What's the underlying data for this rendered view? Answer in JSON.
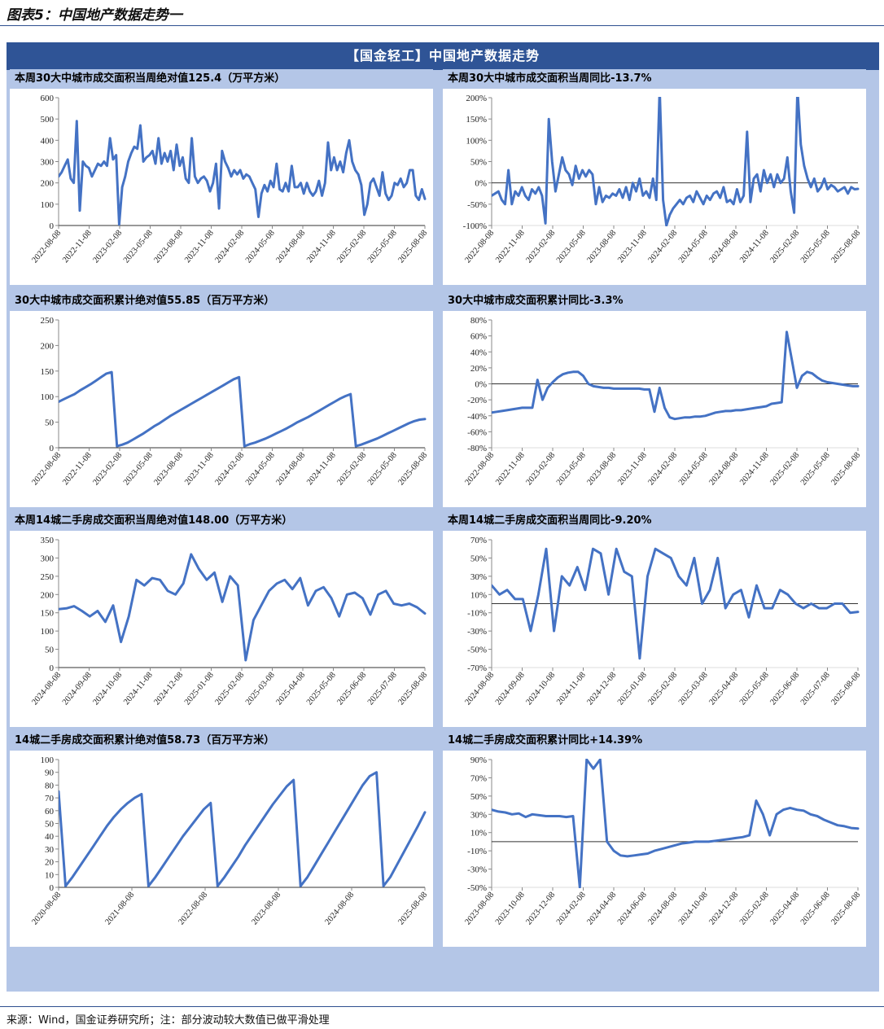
{
  "header": {
    "title": "图表5：中国地产数据走势一"
  },
  "banner": {
    "title": "【国金轻工】中国地产数据走势"
  },
  "footer": {
    "source": "来源：Wind，国金证券研究所；注：部分波动较大数值已做平滑处理"
  },
  "colors": {
    "line": "#4472c4",
    "banner": "#2f5496",
    "frame": "#b4c6e7"
  },
  "panels": [
    {
      "title": "本周30大中城市成交面积当周绝对值125.4（万平方米）",
      "chart_data": {
        "type": "line",
        "series_name": "30大中城市成交面积当周值",
        "ylim": [
          0,
          600
        ],
        "yticks": [
          0,
          100,
          200,
          300,
          400,
          500,
          600
        ],
        "percent": false,
        "zero_line": false,
        "xticks": [
          "2022-08-08",
          "2022-11-08",
          "2023-02-08",
          "2023-05-08",
          "2023-08-08",
          "2023-11-08",
          "2024-02-08",
          "2024-05-08",
          "2024-08-08",
          "2024-11-08",
          "2025-02-08",
          "2025-05-08",
          "2025-08-08"
        ],
        "values": [
          230,
          250,
          280,
          310,
          220,
          200,
          490,
          70,
          300,
          280,
          270,
          230,
          260,
          290,
          280,
          300,
          280,
          410,
          310,
          330,
          5,
          180,
          230,
          300,
          340,
          370,
          360,
          470,
          300,
          320,
          330,
          350,
          290,
          410,
          290,
          340,
          300,
          350,
          260,
          380,
          280,
          320,
          220,
          200,
          410,
          230,
          200,
          220,
          230,
          210,
          160,
          200,
          290,
          80,
          350,
          300,
          270,
          230,
          260,
          240,
          260,
          220,
          240,
          230,
          200,
          170,
          40,
          150,
          190,
          160,
          210,
          180,
          290,
          170,
          160,
          200,
          160,
          280,
          180,
          180,
          200,
          150,
          200,
          160,
          140,
          160,
          210,
          140,
          200,
          390,
          260,
          320,
          260,
          300,
          250,
          340,
          400,
          300,
          260,
          240,
          190,
          50,
          100,
          200,
          220,
          180,
          140,
          250,
          150,
          120,
          140,
          200,
          190,
          220,
          180,
          200,
          260,
          260,
          140,
          120,
          170,
          125
        ]
      }
    },
    {
      "title": "本周30大中城市成交面积当周同比-13.7%",
      "chart_data": {
        "type": "line",
        "series_name": "30大中城市成交面积当周同比",
        "ylim": [
          -100,
          200
        ],
        "yticks": [
          -100,
          -50,
          0,
          50,
          100,
          150,
          200
        ],
        "percent": true,
        "zero_line": true,
        "xticks": [
          "2022-08-08",
          "2022-11-08",
          "2023-02-08",
          "2023-05-08",
          "2023-08-08",
          "2023-11-08",
          "2024-02-08",
          "2024-05-08",
          "2024-08-08",
          "2024-11-08",
          "2025-02-08",
          "2025-05-08",
          "2025-08-08"
        ],
        "values": [
          -30,
          -25,
          -20,
          -40,
          -50,
          30,
          -50,
          -20,
          -30,
          -10,
          -30,
          -40,
          -15,
          -25,
          -10,
          -30,
          -95,
          150,
          50,
          -20,
          20,
          60,
          30,
          20,
          -5,
          40,
          10,
          30,
          15,
          30,
          20,
          -50,
          -10,
          -45,
          -30,
          -35,
          -25,
          -30,
          -15,
          -35,
          -10,
          -40,
          0,
          -20,
          10,
          -30,
          -20,
          -35,
          10,
          -40,
          220,
          -40,
          -100,
          -75,
          -60,
          -50,
          -40,
          -50,
          -35,
          -30,
          -45,
          -20,
          -35,
          -50,
          -30,
          -40,
          -25,
          -20,
          -35,
          -10,
          -45,
          -40,
          -50,
          -15,
          -45,
          -30,
          120,
          -45,
          10,
          20,
          -20,
          30,
          0,
          20,
          -10,
          20,
          0,
          10,
          60,
          -20,
          -70,
          220,
          90,
          40,
          10,
          -10,
          10,
          -20,
          -10,
          10,
          -15,
          -5,
          -10,
          -20,
          -15,
          -10,
          -25,
          -10,
          -15,
          -14
        ]
      }
    },
    {
      "title": "30大中城市成交面积累计绝对值55.85（百万平方米）",
      "chart_data": {
        "type": "line",
        "series_name": "30大中城市成交面积累计值",
        "ylim": [
          0,
          250
        ],
        "yticks": [
          0,
          50,
          100,
          150,
          200,
          250
        ],
        "percent": false,
        "zero_line": false,
        "xticks": [
          "2022-08-08",
          "2022-11-08",
          "2023-02-08",
          "2023-05-08",
          "2023-08-08",
          "2023-11-08",
          "2024-02-08",
          "2024-05-08",
          "2024-08-08",
          "2024-11-08",
          "2025-02-08",
          "2025-05-08",
          "2025-08-08"
        ],
        "values": [
          90,
          95,
          100,
          105,
          112,
          118,
          124,
          131,
          138,
          145,
          148,
          3,
          6,
          10,
          16,
          22,
          28,
          35,
          42,
          48,
          55,
          62,
          68,
          74,
          80,
          86,
          92,
          98,
          104,
          110,
          116,
          122,
          128,
          134,
          138,
          3,
          7,
          10,
          14,
          18,
          23,
          28,
          33,
          38,
          44,
          50,
          55,
          60,
          66,
          72,
          78,
          84,
          90,
          96,
          101,
          105,
          3,
          6,
          10,
          14,
          18,
          23,
          28,
          33,
          38,
          43,
          48,
          52,
          55,
          56
        ]
      }
    },
    {
      "title": "30大中城市成交面积累计同比-3.3%",
      "chart_data": {
        "type": "line",
        "series_name": "30大中城市成交面积累计同比",
        "ylim": [
          -80,
          80
        ],
        "yticks": [
          -80,
          -60,
          -40,
          -20,
          0,
          20,
          40,
          60,
          80
        ],
        "percent": true,
        "zero_line": true,
        "xticks": [
          "2022-08-08",
          "2022-11-08",
          "2023-02-08",
          "2023-05-08",
          "2023-08-08",
          "2023-11-08",
          "2024-02-08",
          "2024-05-08",
          "2024-08-08",
          "2024-11-08",
          "2025-02-08",
          "2025-05-08",
          "2025-08-08"
        ],
        "values": [
          -36,
          -35,
          -34,
          -33,
          -32,
          -31,
          -30,
          -30,
          -30,
          5,
          -20,
          -5,
          2,
          8,
          12,
          14,
          15,
          15,
          10,
          0,
          -3,
          -4,
          -5,
          -5,
          -6,
          -6,
          -6,
          -6,
          -6,
          -6,
          -7,
          -7,
          -35,
          -5,
          -30,
          -42,
          -44,
          -43,
          -42,
          -42,
          -41,
          -41,
          -40,
          -38,
          -36,
          -35,
          -34,
          -34,
          -33,
          -33,
          -32,
          -31,
          -30,
          -29,
          -28,
          -25,
          -24,
          -23,
          65,
          30,
          -5,
          10,
          15,
          13,
          8,
          4,
          2,
          1,
          0,
          -1,
          -2,
          -3,
          -3
        ]
      }
    },
    {
      "title": "本周14城二手房成交面积当周绝对值148.00（万平方米）",
      "chart_data": {
        "type": "line",
        "series_name": "14城二手房成交面积当周值",
        "ylim": [
          0,
          350
        ],
        "yticks": [
          0,
          50,
          100,
          150,
          200,
          250,
          300,
          350
        ],
        "percent": false,
        "zero_line": false,
        "xticks": [
          "2024-08-08",
          "2024-09-08",
          "2024-10-08",
          "2024-11-08",
          "2024-12-08",
          "2025-01-08",
          "2025-02-08",
          "2025-03-08",
          "2025-04-08",
          "2025-05-08",
          "2025-06-08",
          "2025-07-08",
          "2025-08-08"
        ],
        "values": [
          160,
          162,
          168,
          155,
          140,
          155,
          125,
          170,
          70,
          140,
          240,
          225,
          245,
          240,
          210,
          200,
          230,
          310,
          270,
          240,
          260,
          180,
          250,
          225,
          20,
          130,
          170,
          210,
          230,
          240,
          215,
          245,
          170,
          210,
          220,
          190,
          140,
          200,
          205,
          190,
          145,
          200,
          210,
          175,
          170,
          175,
          165,
          148
        ]
      }
    },
    {
      "title": "本周14城二手房成交面积当周同比-9.20%",
      "chart_data": {
        "type": "line",
        "series_name": "14城二手房成交面积当周同比",
        "ylim": [
          -70,
          70
        ],
        "yticks": [
          -70,
          -50,
          -30,
          -10,
          10,
          30,
          50,
          70
        ],
        "percent": true,
        "zero_line": true,
        "xticks": [
          "2024-08-08",
          "2024-09-08",
          "2024-10-08",
          "2024-11-08",
          "2024-12-08",
          "2025-01-08",
          "2025-02-08",
          "2025-03-08",
          "2025-04-08",
          "2025-05-08",
          "2025-06-08",
          "2025-07-08",
          "2025-08-08"
        ],
        "values": [
          20,
          10,
          15,
          5,
          5,
          -30,
          10,
          60,
          -30,
          30,
          20,
          40,
          15,
          60,
          55,
          10,
          60,
          35,
          30,
          -60,
          30,
          60,
          55,
          50,
          30,
          20,
          50,
          0,
          15,
          50,
          -5,
          10,
          15,
          -15,
          20,
          -5,
          -5,
          15,
          10,
          0,
          -5,
          0,
          -5,
          -5,
          0,
          0,
          -10,
          -9
        ]
      }
    },
    {
      "title": "14城二手房成交面积累计绝对值58.73（百万平方米）",
      "chart_data": {
        "type": "line",
        "series_name": "14城二手房成交面积累计值",
        "ylim": [
          0,
          100
        ],
        "yticks": [
          0,
          10,
          20,
          30,
          40,
          50,
          60,
          70,
          80,
          90,
          100
        ],
        "percent": false,
        "zero_line": false,
        "xticks": [
          "2020-08-08",
          "2021-08-08",
          "2022-08-08",
          "2023-08-08",
          "2024-08-08",
          "2025-08-08"
        ],
        "values": [
          75,
          1,
          8,
          16,
          24,
          32,
          40,
          48,
          55,
          61,
          66,
          70,
          73,
          1,
          8,
          16,
          24,
          32,
          40,
          47,
          54,
          61,
          66,
          1,
          8,
          16,
          24,
          33,
          41,
          49,
          57,
          65,
          72,
          79,
          84,
          1,
          8,
          17,
          26,
          35,
          44,
          53,
          62,
          71,
          80,
          87,
          90,
          1,
          8,
          18,
          28,
          38,
          48,
          58.73
        ]
      }
    },
    {
      "title": "14城二手房成交面积累计同比+14.39%",
      "chart_data": {
        "type": "line",
        "series_name": "14城二手房成交面积累计同比",
        "ylim": [
          -50,
          90
        ],
        "yticks": [
          -50,
          -30,
          -10,
          10,
          30,
          50,
          70,
          90
        ],
        "percent": true,
        "zero_line": true,
        "xticks": [
          "2023-08-08",
          "2023-10-08",
          "2023-12-08",
          "2024-02-08",
          "2024-04-08",
          "2024-06-08",
          "2024-08-08",
          "2024-10-08",
          "2024-12-08",
          "2025-02-08",
          "2025-04-08",
          "2025-06-08",
          "2025-08-08"
        ],
        "values": [
          35,
          33,
          32,
          30,
          31,
          27,
          30,
          29,
          28,
          28,
          28,
          27,
          28,
          -50,
          90,
          80,
          90,
          0,
          -10,
          -15,
          -16,
          -15,
          -14,
          -13,
          -10,
          -8,
          -6,
          -4,
          -2,
          -1,
          0,
          0,
          0,
          1,
          2,
          3,
          4,
          5,
          7,
          45,
          30,
          7,
          30,
          35,
          37,
          35,
          34,
          30,
          28,
          24,
          21,
          18,
          17,
          15,
          14.39
        ]
      }
    }
  ]
}
